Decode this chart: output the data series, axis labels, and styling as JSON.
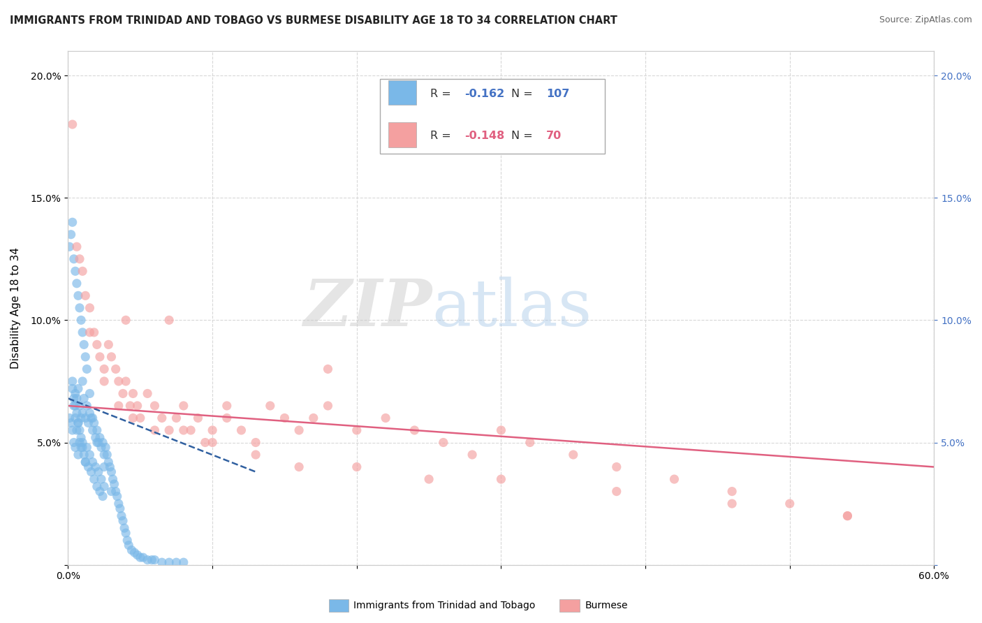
{
  "title": "IMMIGRANTS FROM TRINIDAD AND TOBAGO VS BURMESE DISABILITY AGE 18 TO 34 CORRELATION CHART",
  "source": "Source: ZipAtlas.com",
  "ylabel": "Disability Age 18 to 34",
  "xlim": [
    0.0,
    0.6
  ],
  "ylim": [
    0.0,
    0.21
  ],
  "xticks": [
    0.0,
    0.1,
    0.2,
    0.3,
    0.4,
    0.5,
    0.6
  ],
  "xticklabels": [
    "0.0%",
    "",
    "",
    "",
    "",
    "",
    "60.0%"
  ],
  "yticks": [
    0.0,
    0.05,
    0.1,
    0.15,
    0.2
  ],
  "yticklabels_left": [
    "",
    "5.0%",
    "10.0%",
    "15.0%",
    "20.0%"
  ],
  "yticklabels_right": [
    "",
    "5.0%",
    "10.0%",
    "15.0%",
    "20.0%"
  ],
  "series1_color": "#7ab8e8",
  "series2_color": "#f4a0a0",
  "series1_label": "Immigrants from Trinidad and Tobago",
  "series2_label": "Burmese",
  "series1_R": "-0.162",
  "series1_N": "107",
  "series2_R": "-0.148",
  "series2_N": "70",
  "trend1_color": "#3060a0",
  "trend2_color": "#e06080",
  "watermark_zip": "ZIP",
  "watermark_atlas": "atlas",
  "background_color": "#ffffff",
  "grid_color": "#d8d8d8",
  "right_tick_color": "#4472c4",
  "s1_x": [
    0.001,
    0.002,
    0.003,
    0.003,
    0.004,
    0.004,
    0.005,
    0.005,
    0.005,
    0.006,
    0.006,
    0.007,
    0.007,
    0.007,
    0.008,
    0.008,
    0.009,
    0.009,
    0.01,
    0.01,
    0.01,
    0.011,
    0.011,
    0.012,
    0.012,
    0.013,
    0.013,
    0.014,
    0.014,
    0.015,
    0.015,
    0.016,
    0.016,
    0.017,
    0.017,
    0.018,
    0.018,
    0.019,
    0.019,
    0.02,
    0.02,
    0.021,
    0.021,
    0.022,
    0.022,
    0.023,
    0.023,
    0.024,
    0.024,
    0.025,
    0.025,
    0.026,
    0.027,
    0.028,
    0.029,
    0.03,
    0.031,
    0.032,
    0.033,
    0.034,
    0.035,
    0.036,
    0.037,
    0.038,
    0.039,
    0.04,
    0.041,
    0.042,
    0.044,
    0.046,
    0.048,
    0.05,
    0.052,
    0.055,
    0.058,
    0.06,
    0.065,
    0.07,
    0.075,
    0.08,
    0.001,
    0.002,
    0.003,
    0.004,
    0.005,
    0.006,
    0.007,
    0.008,
    0.009,
    0.01,
    0.011,
    0.012,
    0.013,
    0.015,
    0.017,
    0.02,
    0.025,
    0.03,
    0.003,
    0.004,
    0.005,
    0.006,
    0.007,
    0.008,
    0.009,
    0.01,
    0.012
  ],
  "s1_y": [
    0.06,
    0.058,
    0.075,
    0.055,
    0.065,
    0.05,
    0.07,
    0.06,
    0.048,
    0.068,
    0.055,
    0.072,
    0.058,
    0.045,
    0.065,
    0.05,
    0.06,
    0.048,
    0.075,
    0.062,
    0.05,
    0.068,
    0.045,
    0.06,
    0.042,
    0.065,
    0.048,
    0.058,
    0.04,
    0.062,
    0.045,
    0.06,
    0.038,
    0.055,
    0.042,
    0.058,
    0.035,
    0.052,
    0.04,
    0.055,
    0.032,
    0.05,
    0.038,
    0.052,
    0.03,
    0.048,
    0.035,
    0.05,
    0.028,
    0.045,
    0.032,
    0.048,
    0.045,
    0.042,
    0.04,
    0.038,
    0.035,
    0.033,
    0.03,
    0.028,
    0.025,
    0.023,
    0.02,
    0.018,
    0.015,
    0.013,
    0.01,
    0.008,
    0.006,
    0.005,
    0.004,
    0.003,
    0.003,
    0.002,
    0.002,
    0.002,
    0.001,
    0.001,
    0.001,
    0.001,
    0.13,
    0.135,
    0.14,
    0.125,
    0.12,
    0.115,
    0.11,
    0.105,
    0.1,
    0.095,
    0.09,
    0.085,
    0.08,
    0.07,
    0.06,
    0.05,
    0.04,
    0.03,
    0.072,
    0.068,
    0.065,
    0.062,
    0.058,
    0.055,
    0.052,
    0.048,
    0.042
  ],
  "s2_x": [
    0.003,
    0.006,
    0.008,
    0.01,
    0.012,
    0.015,
    0.018,
    0.02,
    0.022,
    0.025,
    0.028,
    0.03,
    0.033,
    0.035,
    0.038,
    0.04,
    0.043,
    0.045,
    0.048,
    0.05,
    0.055,
    0.06,
    0.065,
    0.07,
    0.075,
    0.08,
    0.085,
    0.09,
    0.095,
    0.1,
    0.11,
    0.12,
    0.13,
    0.14,
    0.15,
    0.16,
    0.17,
    0.18,
    0.2,
    0.22,
    0.24,
    0.26,
    0.28,
    0.3,
    0.32,
    0.35,
    0.38,
    0.42,
    0.46,
    0.5,
    0.54,
    0.015,
    0.025,
    0.035,
    0.045,
    0.06,
    0.08,
    0.1,
    0.13,
    0.16,
    0.2,
    0.25,
    0.3,
    0.38,
    0.46,
    0.54,
    0.04,
    0.07,
    0.11,
    0.18
  ],
  "s2_y": [
    0.18,
    0.13,
    0.125,
    0.12,
    0.11,
    0.105,
    0.095,
    0.09,
    0.085,
    0.08,
    0.09,
    0.085,
    0.08,
    0.075,
    0.07,
    0.075,
    0.065,
    0.07,
    0.065,
    0.06,
    0.07,
    0.065,
    0.06,
    0.055,
    0.06,
    0.065,
    0.055,
    0.06,
    0.05,
    0.055,
    0.06,
    0.055,
    0.05,
    0.065,
    0.06,
    0.055,
    0.06,
    0.065,
    0.055,
    0.06,
    0.055,
    0.05,
    0.045,
    0.055,
    0.05,
    0.045,
    0.04,
    0.035,
    0.03,
    0.025,
    0.02,
    0.095,
    0.075,
    0.065,
    0.06,
    0.055,
    0.055,
    0.05,
    0.045,
    0.04,
    0.04,
    0.035,
    0.035,
    0.03,
    0.025,
    0.02,
    0.1,
    0.1,
    0.065,
    0.08
  ],
  "trend1_x0": 0.0,
  "trend1_x1": 0.13,
  "trend1_y0": 0.068,
  "trend1_y1": 0.038,
  "trend2_x0": 0.0,
  "trend2_x1": 0.6,
  "trend2_y0": 0.065,
  "trend2_y1": 0.04
}
